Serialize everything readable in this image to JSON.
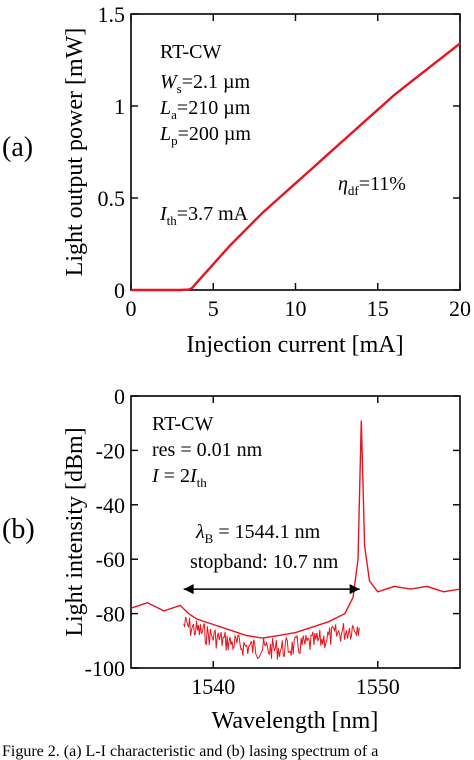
{
  "panel_a_label": "(a)",
  "panel_b_label": "(b)",
  "caption": "Figure 2. (a) L-I characteristic and (b) lasing spectrum of a",
  "chart_data": [
    {
      "type": "line",
      "panel": "a",
      "xlabel": "Injection current [mA]",
      "ylabel": "Light output power [mW]",
      "xlim": [
        0,
        20
      ],
      "ylim": [
        0,
        1.5
      ],
      "xticks": [
        "0",
        "5",
        "10",
        "15",
        "20"
      ],
      "yticks": [
        "0",
        "0.5",
        "1",
        "1.5"
      ],
      "grid": false,
      "line_color": "#e8141c",
      "annotations": {
        "condition": "RT-CW",
        "ws": "2.1 µm",
        "la": "210 µm",
        "lp": "200 µm",
        "eta_df": "11%",
        "ith": "3.7 mA"
      },
      "series": [
        {
          "x": [
            0,
            1,
            2,
            3,
            3.5,
            3.7,
            4,
            5,
            6,
            7,
            8,
            9,
            10,
            11,
            12,
            13,
            14,
            15,
            16,
            17,
            18,
            19,
            20
          ],
          "y": [
            0,
            0,
            0,
            0,
            0.002,
            0.01,
            0.04,
            0.14,
            0.24,
            0.33,
            0.42,
            0.5,
            0.58,
            0.66,
            0.74,
            0.82,
            0.9,
            0.98,
            1.06,
            1.13,
            1.2,
            1.27,
            1.34
          ]
        }
      ]
    },
    {
      "type": "line",
      "panel": "b",
      "xlabel": "Wavelength [nm]",
      "ylabel": "Light intensity [dBm]",
      "xlim": [
        1535,
        1555
      ],
      "ylim": [
        -100,
        0
      ],
      "xticks": [
        "1540",
        "1550"
      ],
      "yticks": [
        "0",
        "-20",
        "-40",
        "-60",
        "-80",
        "-100"
      ],
      "grid": false,
      "line_color": "#e8141c",
      "annotations": {
        "condition": "RT-CW",
        "res": "res = 0.01 nm",
        "current": "2",
        "lambda_b": "1544.1 nm",
        "stopband": "stopband: 10.7 nm"
      },
      "peak": {
        "x": 1549.0,
        "y": -9
      },
      "stopband_range": [
        1538.2,
        1548.9
      ],
      "series": [
        {
          "x": [
            1535,
            1536,
            1537,
            1538,
            1538.5,
            1539,
            1540,
            1541,
            1542,
            1543,
            1544,
            1545,
            1546,
            1547,
            1548,
            1548.5,
            1548.8,
            1549.0,
            1549.2,
            1549.5,
            1550,
            1551,
            1552,
            1553,
            1554,
            1555
          ],
          "y": [
            -78,
            -76,
            -79,
            -77,
            -80,
            -82,
            -84,
            -86,
            -88,
            -89,
            -88,
            -87,
            -85,
            -83,
            -80,
            -74,
            -60,
            -9,
            -55,
            -68,
            -72,
            -70,
            -71,
            -70,
            -72,
            -71
          ]
        }
      ]
    }
  ]
}
